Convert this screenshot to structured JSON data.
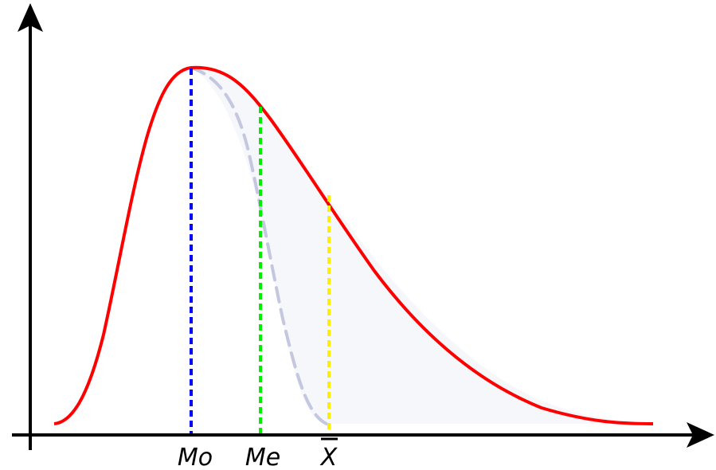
{
  "labels": {
    "mode": "Mo",
    "median": "Me",
    "mean": "X"
  },
  "colors": {
    "curve": "#ff0000",
    "mode_line": "#0000ff",
    "median_line": "#00ee00",
    "mean_line": "#ffee00",
    "reflection": "#c3c8e0",
    "shaded_area": "#f6f7fa",
    "axes": "#000000"
  }
}
